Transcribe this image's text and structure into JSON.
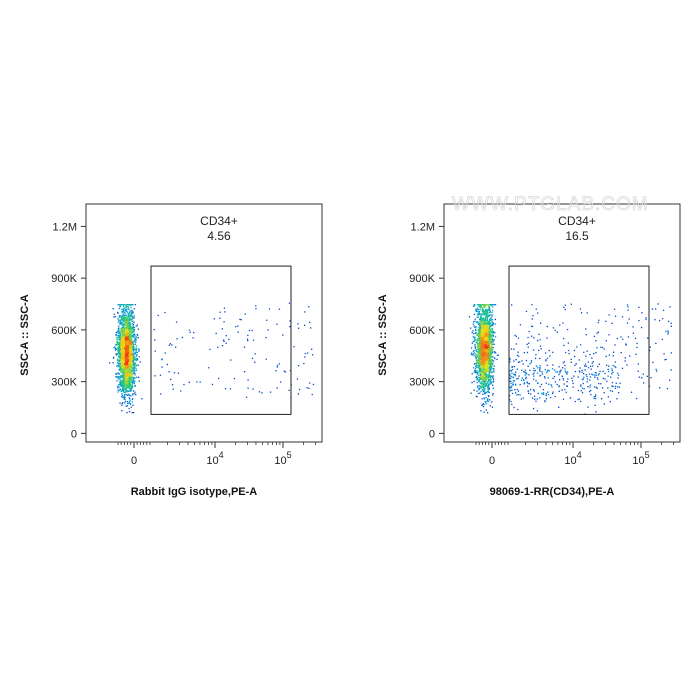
{
  "watermark": "WWW.PTGLAB.COM",
  "chart_data": [
    {
      "type": "scatter",
      "subtype": "flow-cytometry-density",
      "xlabel": "Rabbit IgG isotype,PE-A",
      "ylabel": "SSC-A :: SSC-A",
      "x_scale": "biexponential",
      "x_ticks": [
        {
          "value": 0,
          "label": "0"
        },
        {
          "value": 10000,
          "label": "10",
          "sup": "4"
        },
        {
          "value": 100000,
          "label": "10",
          "sup": "5"
        }
      ],
      "y_ticks": [
        {
          "value": 0,
          "label": "0"
        },
        {
          "value": 300000,
          "label": "300K"
        },
        {
          "value": 600000,
          "label": "600K"
        },
        {
          "value": 900000,
          "label": "900K"
        },
        {
          "value": 1200000,
          "label": "1.2M"
        }
      ],
      "ylim": [
        -50000,
        1330000
      ],
      "gate": {
        "name": "CD34+",
        "percent": "4.56",
        "x_range": [
          900,
          140000
        ],
        "y_range": [
          110000,
          970000
        ]
      },
      "populations": [
        {
          "label": "negative",
          "x_center": 0,
          "y_center": 470000,
          "count": 2600
        },
        {
          "label": "CD34+",
          "x_center": 4000,
          "y_center": 450000,
          "count": 130
        }
      ]
    },
    {
      "type": "scatter",
      "subtype": "flow-cytometry-density",
      "xlabel": "98069-1-RR(CD34),PE-A",
      "ylabel": "SSC-A :: SSC-A",
      "x_scale": "biexponential",
      "x_ticks": [
        {
          "value": 0,
          "label": "0"
        },
        {
          "value": 10000,
          "label": "10",
          "sup": "4"
        },
        {
          "value": 100000,
          "label": "10",
          "sup": "5"
        }
      ],
      "y_ticks": [
        {
          "value": 0,
          "label": "0"
        },
        {
          "value": 300000,
          "label": "300K"
        },
        {
          "value": 600000,
          "label": "600K"
        },
        {
          "value": 900000,
          "label": "900K"
        },
        {
          "value": 1200000,
          "label": "1.2M"
        }
      ],
      "ylim": [
        -50000,
        1330000
      ],
      "gate": {
        "name": "CD34+",
        "percent": "16.5",
        "x_range": [
          900,
          140000
        ],
        "y_range": [
          110000,
          970000
        ]
      },
      "populations": [
        {
          "label": "negative",
          "x_center": 0,
          "y_center": 500000,
          "count": 2300
        },
        {
          "label": "CD34+",
          "x_center": 3500,
          "y_center": 360000,
          "count": 520
        }
      ]
    }
  ]
}
